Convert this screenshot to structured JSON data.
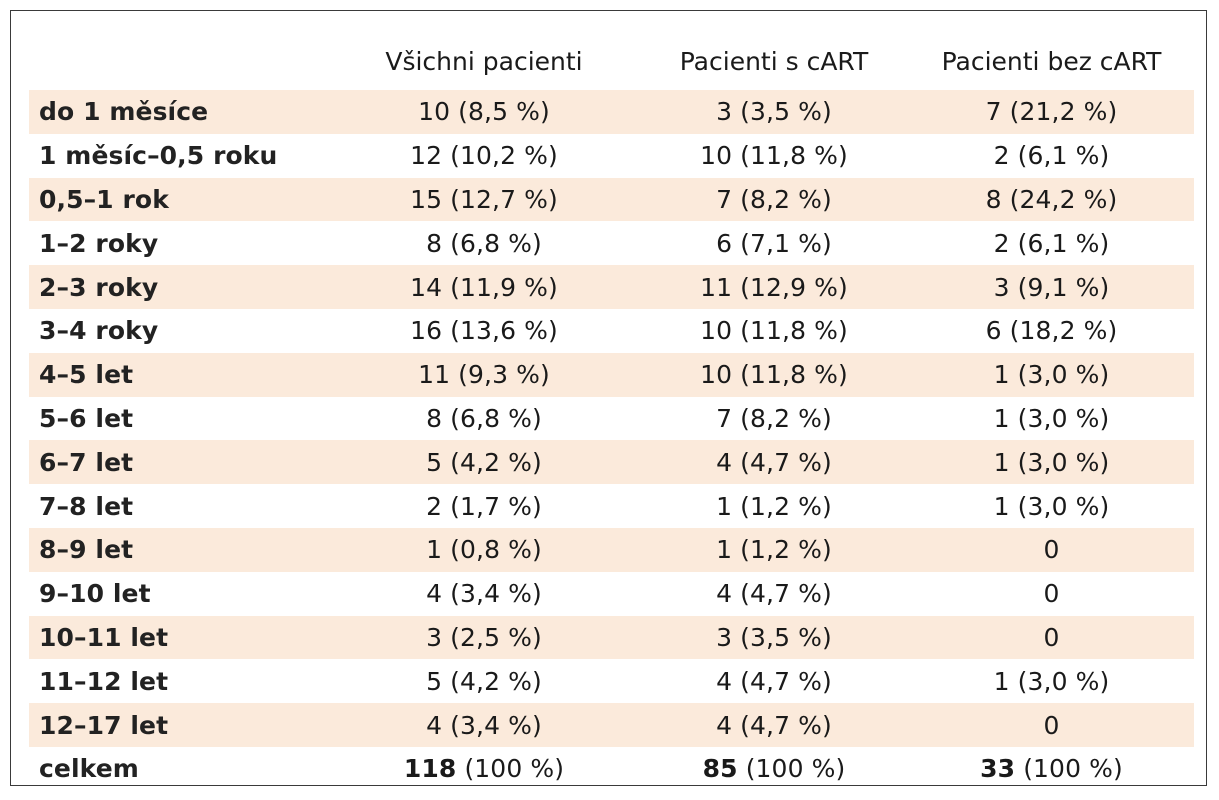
{
  "table": {
    "headers": [
      "Všichni pacienti",
      "Pacienti s cART",
      "Pacienti bez cART"
    ],
    "rows": [
      {
        "label": "do 1 měsíce",
        "all": "10 (8,5 %)",
        "cart": "3 (3,5 %)",
        "nocart": "7 (21,2 %)"
      },
      {
        "label": "1 měsíc–0,5 roku",
        "all": "12 (10,2 %)",
        "cart": "10 (11,8 %)",
        "nocart": "2 (6,1 %)"
      },
      {
        "label": "0,5–1 rok",
        "all": "15 (12,7 %)",
        "cart": "7 (8,2 %)",
        "nocart": "8 (24,2 %)"
      },
      {
        "label": "1–2 roky",
        "all": "8 (6,8 %)",
        "cart": "6 (7,1 %)",
        "nocart": "2 (6,1 %)"
      },
      {
        "label": "2–3 roky",
        "all": "14 (11,9 %)",
        "cart": "11 (12,9 %)",
        "nocart": "3 (9,1 %)"
      },
      {
        "label": "3–4 roky",
        "all": "16 (13,6 %)",
        "cart": "10 (11,8 %)",
        "nocart": "6 (18,2 %)"
      },
      {
        "label": "4–5 let",
        "all": "11 (9,3 %)",
        "cart": "10 (11,8 %)",
        "nocart": "1 (3,0 %)"
      },
      {
        "label": "5–6 let",
        "all": "8 (6,8 %)",
        "cart": "7 (8,2 %)",
        "nocart": "1 (3,0 %)"
      },
      {
        "label": "6–7 let",
        "all": "5 (4,2 %)",
        "cart": "4 (4,7 %)",
        "nocart": "1 (3,0 %)"
      },
      {
        "label": "7–8 let",
        "all": "2 (1,7 %)",
        "cart": "1 (1,2 %)",
        "nocart": "1 (3,0 %)"
      },
      {
        "label": "8–9 let",
        "all": "1 (0,8 %)",
        "cart": "1 (1,2 %)",
        "nocart": "0"
      },
      {
        "label": "9–10 let",
        "all": "4 (3,4 %)",
        "cart": "4 (4,7 %)",
        "nocart": "0"
      },
      {
        "label": "10–11 let",
        "all": "3 (2,5 %)",
        "cart": "3 (3,5 %)",
        "nocart": "0"
      },
      {
        "label": "11–12 let",
        "all": "5 (4,2 %)",
        "cart": "4 (4,7 %)",
        "nocart": "1 (3,0 %)"
      },
      {
        "label": "12–17 let",
        "all": "4 (3,4 %)",
        "cart": "4 (4,7 %)",
        "nocart": "0"
      }
    ],
    "total": {
      "label": "celkem",
      "all_count": "118",
      "all_pct": " (100 %)",
      "cart_count": "85",
      "cart_pct": " (100 %)",
      "nocart_count": "33",
      "nocart_pct": " (100 %)"
    },
    "shade_color": "#fbeadb"
  }
}
